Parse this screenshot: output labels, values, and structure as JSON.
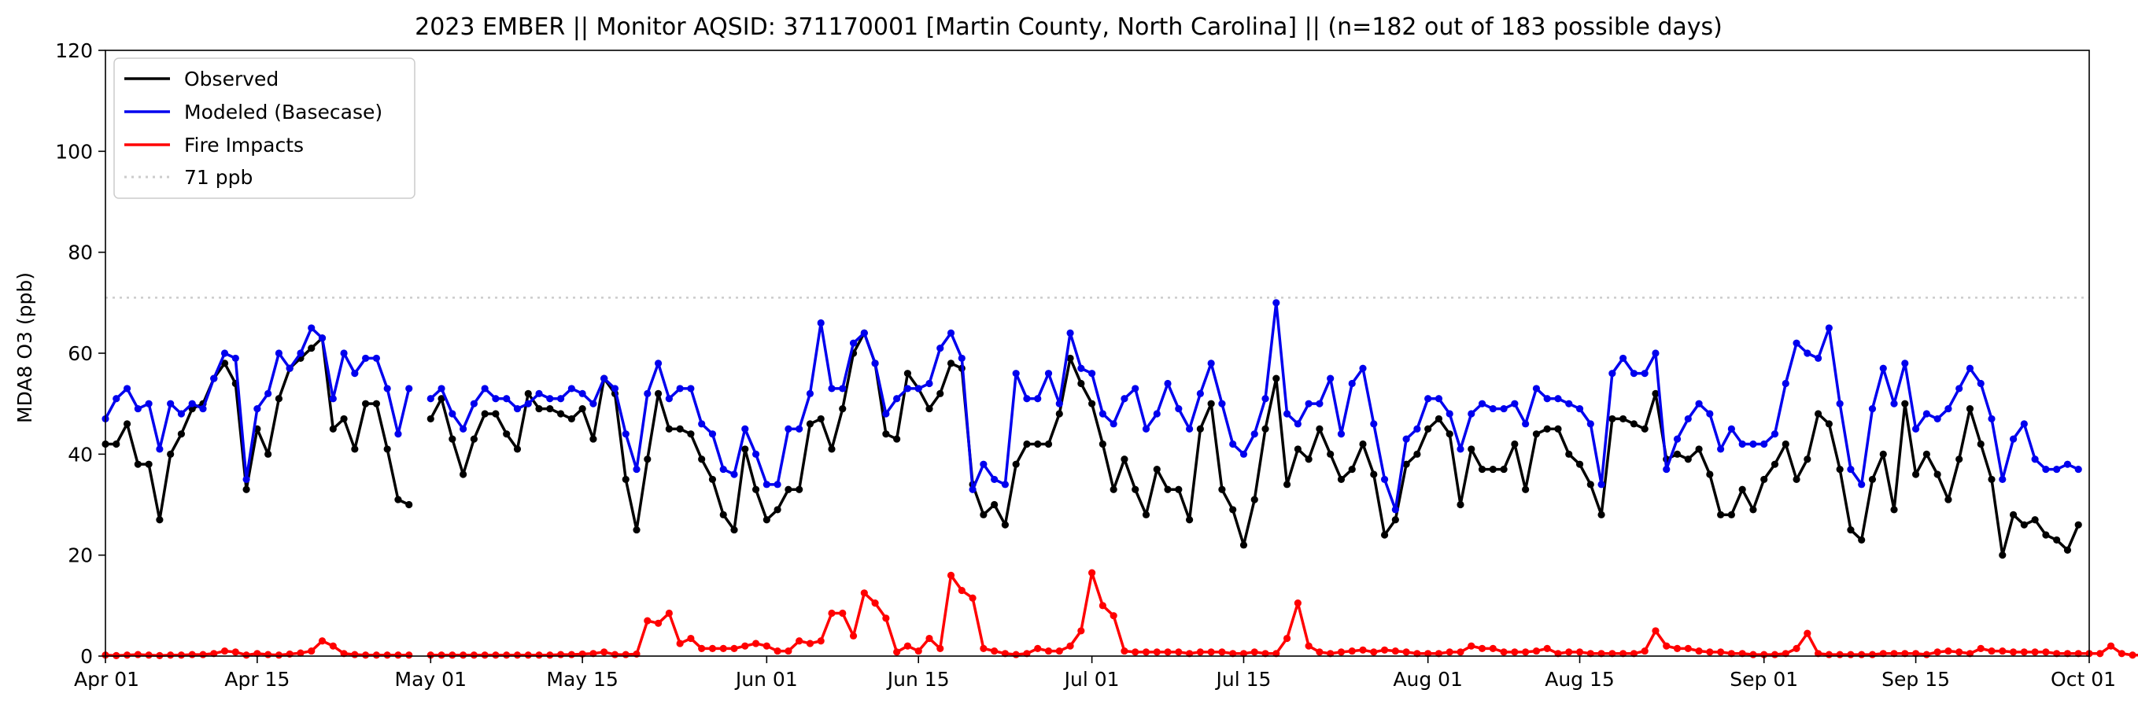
{
  "chart_data": {
    "type": "line",
    "title": "2023 EMBER || Monitor AQSID: 371170001 [Martin County, North Carolina] || (n=182 out of 183 possible days)",
    "xlabel": "",
    "ylabel": "MDA8 O3 (ppb)",
    "ylim": [
      0,
      120
    ],
    "yticks": [
      0,
      20,
      40,
      60,
      80,
      100,
      120
    ],
    "xlim": [
      "2023-04-01",
      "2023-10-01"
    ],
    "xticks": [
      "Apr 01",
      "Apr 15",
      "May 01",
      "May 15",
      "Jun 01",
      "Jun 15",
      "Jul 01",
      "Jul 15",
      "Aug 01",
      "Aug 15",
      "Sep 01",
      "Sep 15",
      "Oct 01"
    ],
    "xtick_dates": [
      "2023-04-01",
      "2023-04-15",
      "2023-05-01",
      "2023-05-15",
      "2023-06-01",
      "2023-06-15",
      "2023-07-01",
      "2023-07-15",
      "2023-08-01",
      "2023-08-15",
      "2023-09-01",
      "2023-09-15",
      "2023-10-01"
    ],
    "grid": false,
    "legend_position": "top-left",
    "reference_line": {
      "label": "71 ppb",
      "value": 71,
      "color": "#cccccc"
    },
    "x_start": "2023-04-01",
    "series": [
      {
        "name": "Observed",
        "color": "#000000",
        "values": [
          42,
          42,
          46,
          38,
          38,
          27,
          40,
          44,
          49,
          50,
          55,
          58,
          54,
          33,
          45,
          40,
          51,
          57,
          59,
          61,
          63,
          45,
          47,
          41,
          50,
          50,
          41,
          31,
          30,
          null,
          47,
          51,
          43,
          36,
          43,
          48,
          48,
          44,
          41,
          52,
          49,
          49,
          48,
          47,
          49,
          43,
          55,
          52,
          35,
          25,
          39,
          52,
          45,
          45,
          44,
          39,
          35,
          28,
          25,
          41,
          33,
          27,
          29,
          33,
          33,
          46,
          47,
          41,
          49,
          60,
          64,
          58,
          44,
          43,
          56,
          53,
          49,
          52,
          58,
          57,
          34,
          28,
          30,
          26,
          38,
          42,
          42,
          42,
          48,
          59,
          54,
          50,
          42,
          33,
          39,
          33,
          28,
          37,
          33,
          33,
          27,
          45,
          50,
          33,
          29,
          22,
          31,
          45,
          55,
          34,
          41,
          39,
          45,
          40,
          35,
          37,
          42,
          36,
          24,
          27,
          38,
          40,
          45,
          47,
          44,
          30,
          41,
          37,
          37,
          37,
          42,
          33,
          44,
          45,
          45,
          40,
          38,
          34,
          28,
          47,
          47,
          46,
          45,
          52,
          39,
          40,
          39,
          41,
          36,
          28,
          28,
          33,
          29,
          35,
          38,
          42,
          35,
          39,
          48,
          46,
          37,
          25,
          23,
          35,
          40,
          29,
          50,
          36,
          40,
          36,
          31,
          39,
          49,
          42,
          35,
          20,
          28,
          26,
          27,
          24,
          23,
          21,
          26
        ]
      },
      {
        "name": "Modeled (Basecase)",
        "color": "#0000ee",
        "values": [
          47,
          51,
          53,
          49,
          50,
          41,
          50,
          48,
          50,
          49,
          55,
          60,
          59,
          35,
          49,
          52,
          60,
          57,
          60,
          65,
          63,
          51,
          60,
          56,
          59,
          59,
          53,
          44,
          53,
          null,
          51,
          53,
          48,
          45,
          50,
          53,
          51,
          51,
          49,
          50,
          52,
          51,
          51,
          53,
          52,
          50,
          55,
          53,
          44,
          37,
          52,
          58,
          51,
          53,
          53,
          46,
          44,
          37,
          36,
          45,
          40,
          34,
          34,
          45,
          45,
          52,
          66,
          53,
          53,
          62,
          64,
          58,
          48,
          51,
          53,
          53,
          54,
          61,
          64,
          59,
          33,
          38,
          35,
          34,
          56,
          51,
          51,
          56,
          50,
          64,
          57,
          56,
          48,
          46,
          51,
          53,
          45,
          48,
          54,
          49,
          45,
          52,
          58,
          50,
          42,
          40,
          44,
          51,
          70,
          48,
          46,
          50,
          50,
          55,
          44,
          54,
          57,
          46,
          35,
          29,
          43,
          45,
          51,
          51,
          48,
          41,
          48,
          50,
          49,
          49,
          50,
          46,
          53,
          51,
          51,
          50,
          49,
          46,
          34,
          56,
          59,
          56,
          56,
          60,
          37,
          43,
          47,
          50,
          48,
          41,
          45,
          42,
          42,
          42,
          44,
          54,
          62,
          60,
          59,
          65,
          50,
          37,
          34,
          49,
          57,
          50,
          58,
          45,
          48,
          47,
          49,
          53,
          57,
          54,
          47,
          35,
          43,
          46,
          39,
          37,
          37,
          38,
          37
        ]
      },
      {
        "name": "Fire Impacts",
        "color": "#ff0000",
        "values": [
          0.2,
          0.1,
          0.2,
          0.3,
          0.2,
          0.1,
          0.2,
          0.2,
          0.3,
          0.3,
          0.5,
          1,
          0.8,
          0.2,
          0.5,
          0.3,
          0.2,
          0.4,
          0.6,
          1,
          3,
          2,
          0.5,
          0.3,
          0.2,
          0.2,
          0.2,
          0.2,
          0.2,
          null,
          0.2,
          0.2,
          0.2,
          0.2,
          0.2,
          0.2,
          0.2,
          0.2,
          0.2,
          0.2,
          0.2,
          0.2,
          0.3,
          0.3,
          0.4,
          0.5,
          0.8,
          0.3,
          0.3,
          0.4,
          7,
          6.5,
          8.5,
          2.5,
          3.5,
          1.5,
          1.5,
          1.5,
          1.5,
          2,
          2.5,
          2,
          1,
          1,
          3,
          2.5,
          3,
          8.5,
          8.5,
          4,
          12.5,
          10.5,
          7.5,
          0.8,
          2,
          1,
          3.5,
          1.5,
          16,
          13,
          11.5,
          1.5,
          1,
          0.5,
          0.3,
          0.5,
          1.5,
          1,
          1,
          2,
          5,
          16.5,
          10,
          8,
          1,
          0.8,
          0.8,
          0.8,
          0.8,
          0.8,
          0.5,
          0.8,
          0.8,
          0.8,
          0.5,
          0.5,
          0.8,
          0.5,
          0.5,
          3.5,
          10.5,
          2,
          0.8,
          0.5,
          0.8,
          1,
          1.2,
          0.8,
          1.2,
          1,
          0.8,
          0.5,
          0.5,
          0.5,
          0.8,
          0.8,
          2,
          1.5,
          1.5,
          0.8,
          0.8,
          0.8,
          1,
          1.5,
          0.5,
          0.8,
          0.8,
          0.5,
          0.5,
          0.5,
          0.5,
          0.5,
          1,
          5,
          2,
          1.5,
          1.5,
          1,
          0.8,
          0.8,
          0.5,
          0.5,
          0.3,
          0.3,
          0.3,
          0.5,
          1.5,
          4.5,
          0.5,
          0.3,
          0.3,
          0.3,
          0.3,
          0.3,
          0.5,
          0.5,
          0.5,
          0.5,
          0.3,
          0.8,
          1,
          0.8,
          0.5,
          1.5,
          1,
          1,
          0.8,
          0.8,
          0.8,
          0.8,
          0.5,
          0.5,
          0.5,
          0.5,
          0.5,
          2,
          0.5,
          0.2,
          0.2
        ]
      }
    ]
  }
}
